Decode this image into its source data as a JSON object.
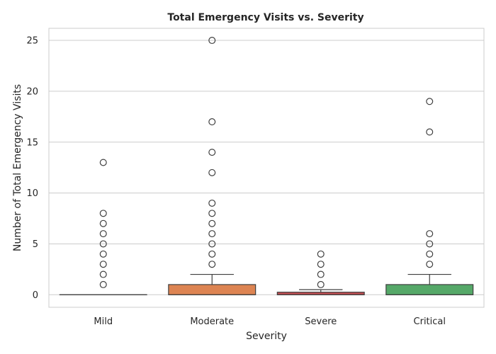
{
  "chart_data": {
    "type": "box",
    "title": "Total Emergency Visits vs. Severity",
    "xlabel": "Severity",
    "ylabel": "Number of Total Emergency Visits",
    "categories": [
      "Mild",
      "Moderate",
      "Severe",
      "Critical"
    ],
    "ylim": [
      -1.2,
      26.3
    ],
    "yticks": [
      0,
      5,
      10,
      15,
      20,
      25
    ],
    "grid": "horizontal",
    "colors": {
      "Mild": "#4c72b0",
      "Moderate": "#dd8452",
      "Severe": "#c44e52",
      "Critical": "#55a868"
    },
    "boxes": [
      {
        "category": "Mild",
        "min": 0,
        "q1": 0,
        "median": 0,
        "q3": 0,
        "max": 0,
        "outliers": [
          1,
          2,
          3,
          4,
          5,
          6,
          7,
          8,
          13
        ]
      },
      {
        "category": "Moderate",
        "min": 0,
        "q1": 0,
        "median": 0,
        "q3": 1,
        "max": 2,
        "outliers": [
          3,
          4,
          5,
          6,
          7,
          8,
          9,
          12,
          14,
          17,
          25
        ]
      },
      {
        "category": "Severe",
        "min": 0,
        "q1": 0,
        "median": 0,
        "q3": 0.25,
        "max": 0.5,
        "outliers": [
          1,
          2,
          3,
          4
        ]
      },
      {
        "category": "Critical",
        "min": 0,
        "q1": 0,
        "median": 0,
        "q3": 1,
        "max": 2,
        "outliers": [
          3,
          4,
          5,
          6,
          16,
          19
        ]
      }
    ]
  }
}
